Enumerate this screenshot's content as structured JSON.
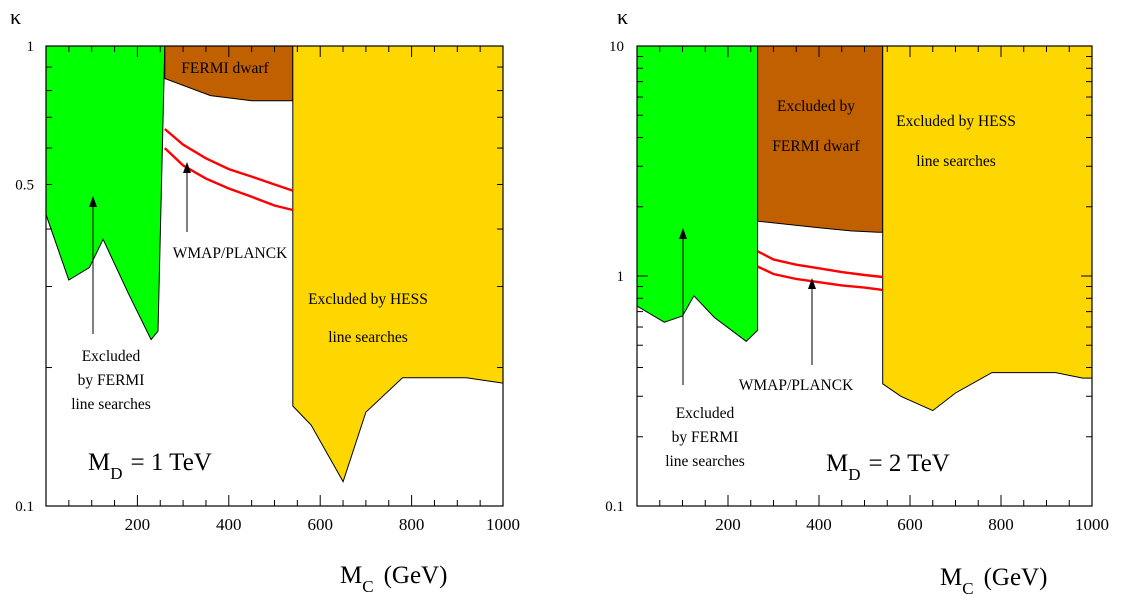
{
  "chart_data": [
    {
      "type": "area",
      "ylabel": "κ",
      "xlabel_main": "M",
      "xlabel_sub": "C",
      "xlabel_unit": "(GeV)",
      "x_range": [
        0,
        1000
      ],
      "y_range": [
        0.1,
        1
      ],
      "y_scale": "log",
      "x_ticks": [
        200,
        400,
        600,
        800,
        1000
      ],
      "x_tick_labels": [
        "200",
        "400",
        "600",
        "800",
        "1000"
      ],
      "y_ticks": [
        0.1,
        0.5,
        1
      ],
      "y_tick_labels": [
        "0.1",
        "0.5",
        "1"
      ],
      "annotation_main": "M",
      "annotation_sub": "D",
      "annotation_value": "= 1 TeV",
      "colors": {
        "fermi_line": "#00ff00",
        "fermi_dwarf": "#c06000",
        "hess": "#ffd700",
        "wmap": "#ff0000"
      },
      "regions": [
        {
          "name": "fermi-line",
          "color": "#00ff00",
          "labels": [
            "Excluded",
            "by FERMI",
            "line searches"
          ],
          "polygon": [
            [
              0,
              1
            ],
            [
              0,
              0.43
            ],
            [
              50,
              0.31
            ],
            [
              95,
              0.33
            ],
            [
              125,
              0.38
            ],
            [
              180,
              0.29
            ],
            [
              230,
              0.23
            ],
            [
              245,
              0.24
            ],
            [
              260,
              1
            ]
          ]
        },
        {
          "name": "fermi-dwarf",
          "color": "#c06000",
          "labels": [
            "FERMI dwarf"
          ],
          "polygon": [
            [
              260,
              1
            ],
            [
              260,
              0.85
            ],
            [
              360,
              0.78
            ],
            [
              450,
              0.76
            ],
            [
              540,
              0.76
            ],
            [
              540,
              1
            ]
          ]
        },
        {
          "name": "hess-line",
          "color": "#ffd700",
          "labels": [
            "Excluded  by HESS",
            "line searches"
          ],
          "polygon": [
            [
              540,
              1
            ],
            [
              540,
              0.165
            ],
            [
              580,
              0.15
            ],
            [
              650,
              0.113
            ],
            [
              700,
              0.16
            ],
            [
              780,
              0.19
            ],
            [
              920,
              0.19
            ],
            [
              1000,
              0.185
            ],
            [
              1000,
              1
            ]
          ]
        }
      ],
      "wmap_band": {
        "label": "WMAP/PLANCK",
        "color": "#ff0000",
        "upper": {
          "x": [
            260,
            300,
            350,
            400,
            450,
            500,
            540
          ],
          "y": [
            0.66,
            0.61,
            0.57,
            0.54,
            0.52,
            0.5,
            0.485
          ]
        },
        "lower": {
          "x": [
            260,
            300,
            350,
            400,
            450,
            500,
            540
          ],
          "y": [
            0.6,
            0.55,
            0.515,
            0.49,
            0.47,
            0.45,
            0.44
          ]
        }
      }
    },
    {
      "type": "area",
      "ylabel": "κ",
      "xlabel_main": "M",
      "xlabel_sub": "C",
      "xlabel_unit": "(GeV)",
      "x_range": [
        0,
        1000
      ],
      "y_range": [
        0.1,
        10
      ],
      "y_scale": "log",
      "x_ticks": [
        200,
        400,
        600,
        800,
        1000
      ],
      "x_tick_labels": [
        "200",
        "400",
        "600",
        "800",
        "1000"
      ],
      "y_ticks": [
        0.1,
        1,
        10
      ],
      "y_tick_labels": [
        "0.1",
        "1",
        "10"
      ],
      "annotation_main": "M",
      "annotation_sub": "D",
      "annotation_value": "= 2 TeV",
      "colors": {
        "fermi_line": "#00ff00",
        "fermi_dwarf": "#c06000",
        "hess": "#ffd700",
        "wmap": "#ff0000"
      },
      "regions": [
        {
          "name": "fermi-line",
          "color": "#00ff00",
          "labels": [
            "Excluded",
            "by FERMI",
            "line searches"
          ],
          "polygon": [
            [
              0,
              10
            ],
            [
              0,
              0.74
            ],
            [
              60,
              0.63
            ],
            [
              100,
              0.67
            ],
            [
              125,
              0.82
            ],
            [
              170,
              0.66
            ],
            [
              240,
              0.52
            ],
            [
              265,
              0.58
            ],
            [
              265,
              10
            ]
          ]
        },
        {
          "name": "fermi-dwarf",
          "color": "#c06000",
          "labels": [
            "Excluded by",
            "FERMI dwarf"
          ],
          "polygon": [
            [
              265,
              10
            ],
            [
              265,
              1.73
            ],
            [
              400,
              1.62
            ],
            [
              470,
              1.57
            ],
            [
              530,
              1.55
            ],
            [
              540,
              1.55
            ],
            [
              540,
              10
            ]
          ]
        },
        {
          "name": "hess-line",
          "color": "#ffd700",
          "labels": [
            "Excluded  by HESS",
            "line searches"
          ],
          "polygon": [
            [
              540,
              10
            ],
            [
              540,
              0.34
            ],
            [
              580,
              0.3
            ],
            [
              650,
              0.26
            ],
            [
              700,
              0.31
            ],
            [
              780,
              0.38
            ],
            [
              920,
              0.38
            ],
            [
              980,
              0.36
            ],
            [
              1000,
              0.36
            ],
            [
              1000,
              10
            ]
          ]
        }
      ],
      "wmap_band": {
        "label": "WMAP/PLANCK",
        "color": "#ff0000",
        "upper": {
          "x": [
            265,
            300,
            350,
            400,
            450,
            500,
            540
          ],
          "y": [
            1.28,
            1.18,
            1.12,
            1.08,
            1.04,
            1.01,
            0.99
          ]
        },
        "lower": {
          "x": [
            265,
            300,
            350,
            400,
            450,
            500,
            540
          ],
          "y": [
            1.1,
            1.02,
            0.97,
            0.94,
            0.91,
            0.89,
            0.87
          ]
        }
      }
    }
  ]
}
